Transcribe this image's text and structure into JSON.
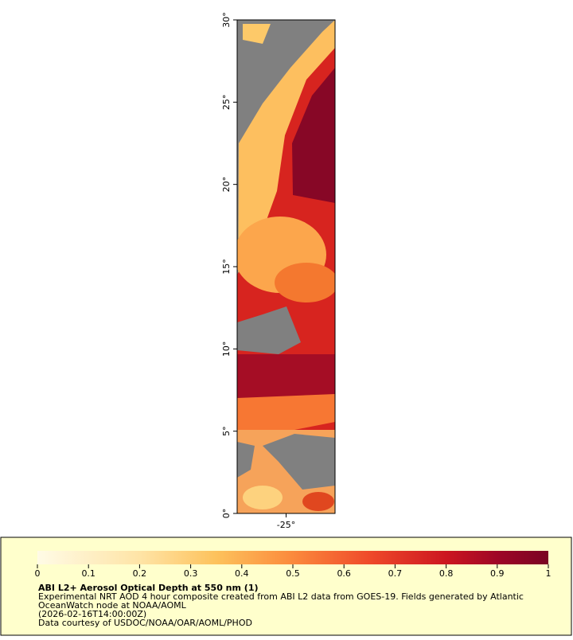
{
  "chart_data": {
    "type": "map",
    "title": "ABI L2+ Aerosol Optical Depth at 550 nm (1)",
    "description": [
      "Experimental NRT AOD 4 hour composite created from ABI L2 data from GOES-19. Fields generated by Atlantic",
      "OceanWatch node at NOAA/AOML",
      "(2026-02-16T14:00:00Z)",
      "Data courtesy of USDOC/NOAA/OAR/AOML/PHOD"
    ],
    "xlim": [
      -28,
      -22
    ],
    "xticks": [
      {
        "value": -25,
        "label": "-25°"
      }
    ],
    "ylim": [
      0,
      30
    ],
    "yticks": [
      {
        "value": 0,
        "label": "0°"
      },
      {
        "value": 5,
        "label": "5°"
      },
      {
        "value": 10,
        "label": "10°"
      },
      {
        "value": 15,
        "label": "15°"
      },
      {
        "value": 20,
        "label": "20°"
      },
      {
        "value": 25,
        "label": "25°"
      },
      {
        "value": 30,
        "label": "30°"
      }
    ],
    "colorbar": {
      "range": [
        0,
        1
      ],
      "ticks": [
        0,
        0.1,
        0.2,
        0.3,
        0.4,
        0.5,
        0.6,
        0.7,
        0.8,
        0.9,
        1
      ]
    }
  }
}
